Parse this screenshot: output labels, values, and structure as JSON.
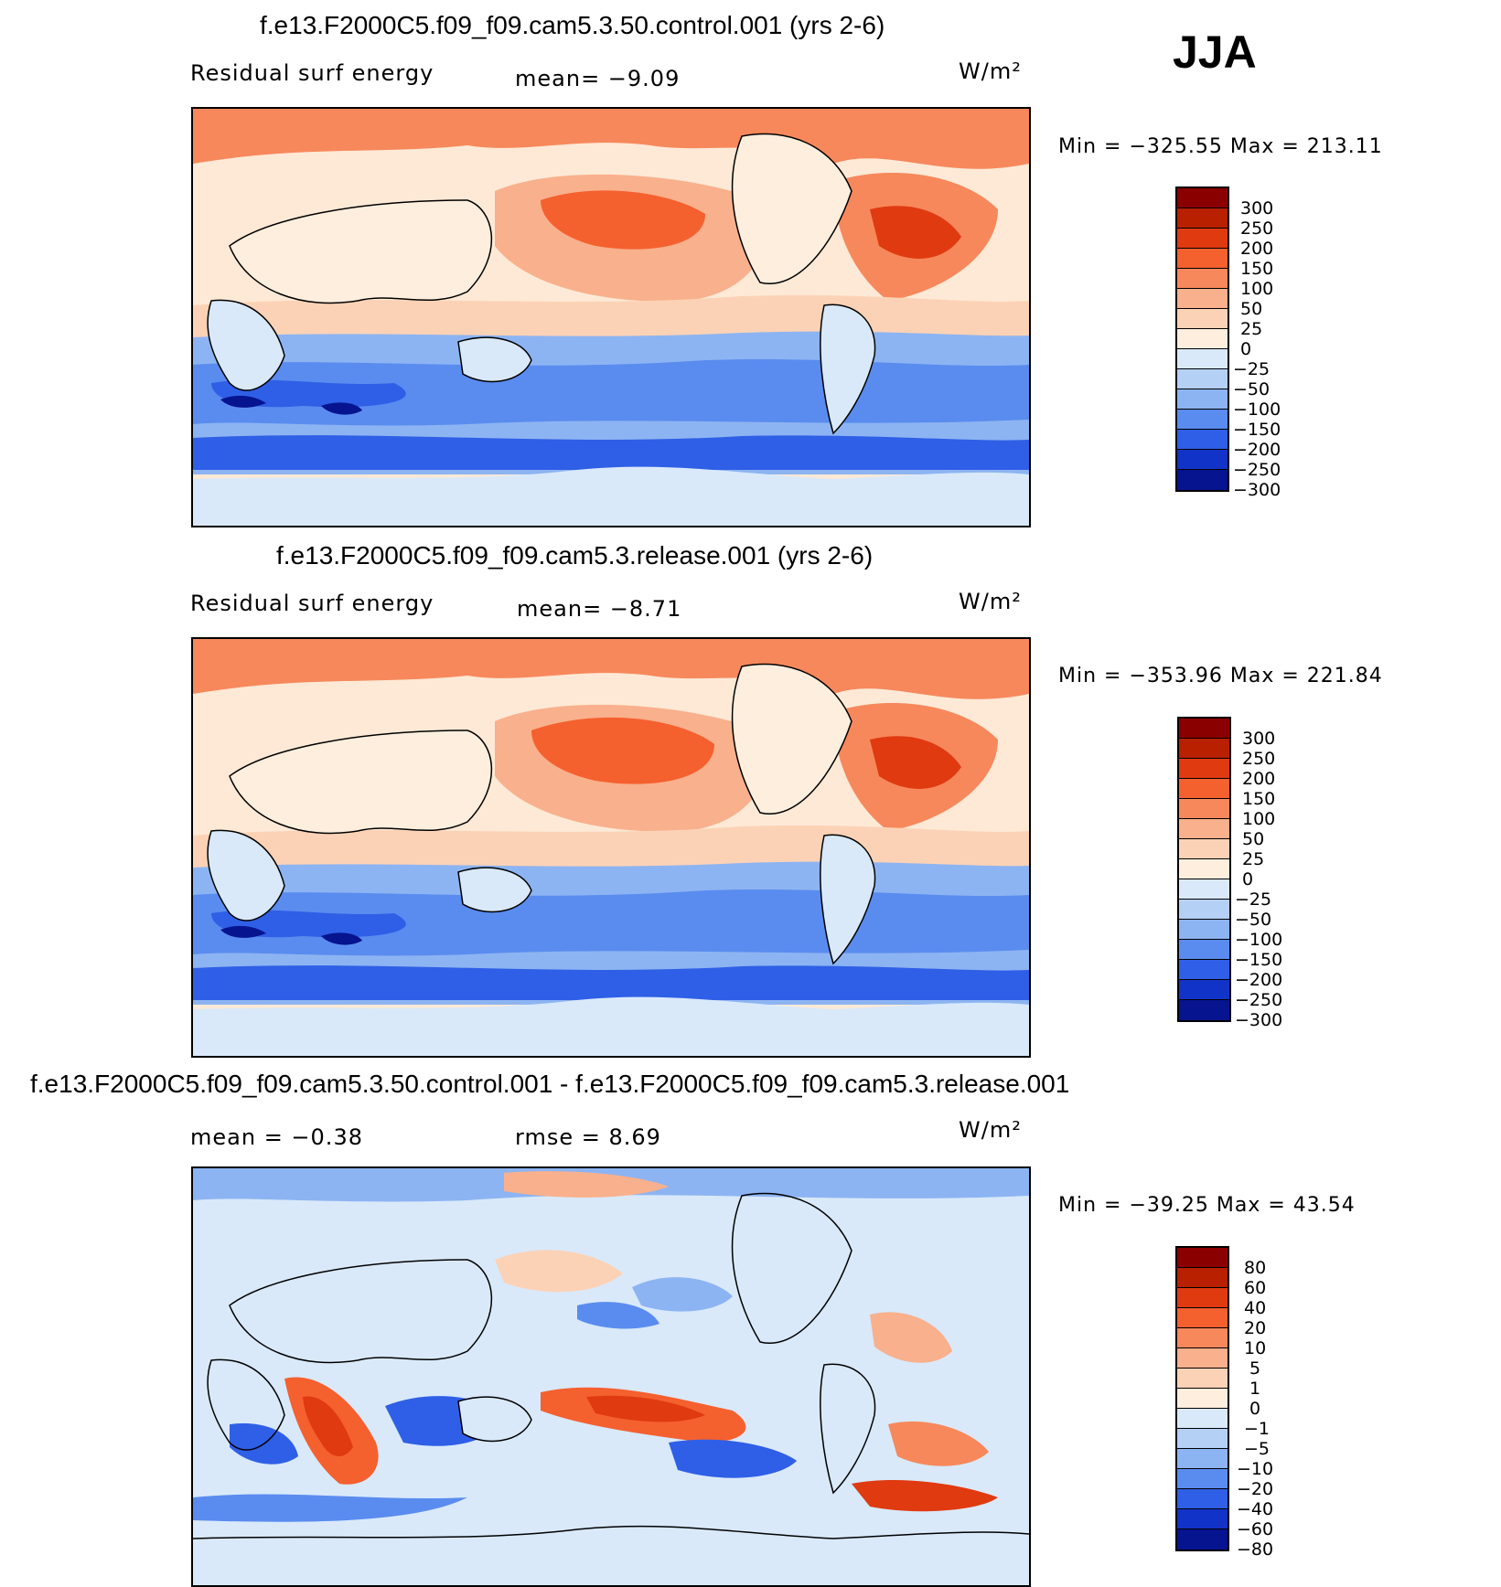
{
  "season": "JJA",
  "panels": [
    {
      "title": "f.e13.F2000C5.f09_f09.cam5.3.50.control.001 (yrs 2-6)",
      "left_label": "Residual surf energy",
      "stat_label": "mean=   −9.09",
      "units": "W/m²",
      "minmax": "Min = −325.55 Max = 213.11",
      "levels": [
        "300",
        "250",
        "200",
        "150",
        "100",
        "50",
        "25",
        "0",
        "−25",
        "−50",
        "−100",
        "−150",
        "−200",
        "−250",
        "−300"
      ]
    },
    {
      "title": "f.e13.F2000C5.f09_f09.cam5.3.release.001 (yrs 2-6)",
      "left_label": "Residual surf energy",
      "stat_label": "mean=   −8.71",
      "units": "W/m²",
      "minmax": "Min = −353.96 Max = 221.84",
      "levels": [
        "300",
        "250",
        "200",
        "150",
        "100",
        "50",
        "25",
        "0",
        "−25",
        "−50",
        "−100",
        "−150",
        "−200",
        "−250",
        "−300"
      ]
    },
    {
      "title": "f.e13.F2000C5.f09_f09.cam5.3.50.control.001 - f.e13.F2000C5.f09_f09.cam5.3.release.001",
      "left_label": "mean =   −0.38",
      "stat_label": "rmse =     8.69",
      "units": "W/m²",
      "minmax": "Min = −39.25 Max =   43.54",
      "levels": [
        "80",
        "60",
        "40",
        "20",
        "10",
        "5",
        "1",
        "0",
        "−1",
        "−5",
        "−10",
        "−20",
        "−40",
        "−60",
        "−80"
      ]
    }
  ],
  "colorbar_colors": [
    "#8a0000",
    "#b82000",
    "#e03a10",
    "#f5602f",
    "#f7885c",
    "#f9b08c",
    "#fcd2b6",
    "#fdeede",
    "#d9e9fa",
    "#b5d0f5",
    "#8db4f2",
    "#5a8cef",
    "#2f5fe6",
    "#1233c8",
    "#06148f"
  ]
}
